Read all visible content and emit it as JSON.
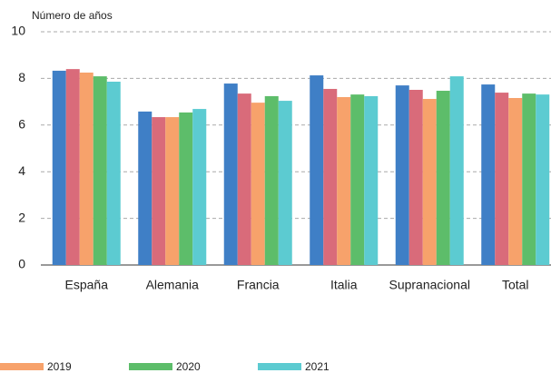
{
  "chart_data": {
    "type": "bar",
    "y_label": "Número de años",
    "categories": [
      "España",
      "Alemania",
      "Francia",
      "Italia",
      "Supranacional",
      "Total"
    ],
    "series": [
      {
        "color": "#3f7fc6",
        "values": [
          8.33,
          6.58,
          7.78,
          8.13,
          7.7,
          7.74
        ]
      },
      {
        "color": "#d96b7a",
        "values": [
          8.4,
          6.34,
          7.35,
          7.55,
          7.51,
          7.39
        ]
      },
      {
        "name": "2019",
        "color": "#f7a26b",
        "values": [
          8.25,
          6.34,
          6.96,
          7.2,
          7.12,
          7.16
        ]
      },
      {
        "name": "2020",
        "color": "#5dbd6a",
        "values": [
          8.09,
          6.54,
          7.24,
          7.31,
          7.47,
          7.35
        ]
      },
      {
        "name": "2021",
        "color": "#5ccbd1",
        "values": [
          7.86,
          6.69,
          7.04,
          7.24,
          8.09,
          7.31
        ]
      }
    ],
    "ylim": [
      0,
      10
    ],
    "yticks": [
      0,
      2,
      4,
      6,
      8,
      10
    ],
    "grid": true
  }
}
